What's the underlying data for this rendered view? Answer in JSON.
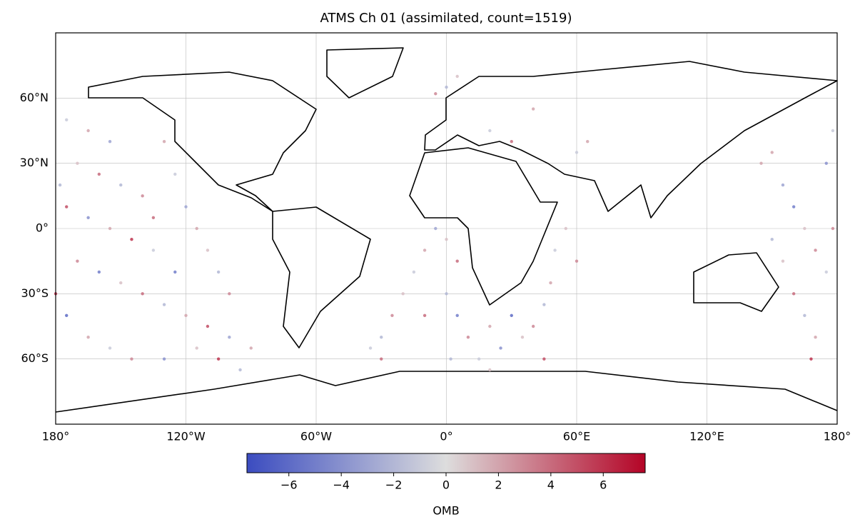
{
  "chart_data": {
    "type": "scatter",
    "title": "ATMS Ch 01 (assimilated, count=1519)",
    "xlim": [
      -180,
      180
    ],
    "ylim": [
      -90,
      90
    ],
    "xticks": [
      {
        "value": -180,
        "label": "180°"
      },
      {
        "value": -120,
        "label": "120°W"
      },
      {
        "value": -60,
        "label": "60°W"
      },
      {
        "value": 0,
        "label": "0°"
      },
      {
        "value": 60,
        "label": "60°E"
      },
      {
        "value": 120,
        "label": "120°E"
      },
      {
        "value": 180,
        "label": "180°"
      }
    ],
    "yticks": [
      {
        "value": -60,
        "label": "60°S"
      },
      {
        "value": -30,
        "label": "30°S"
      },
      {
        "value": 0,
        "label": "0°"
      },
      {
        "value": 30,
        "label": "30°N"
      },
      {
        "value": 60,
        "label": "60°N"
      }
    ],
    "grid": true,
    "x": [
      -175,
      -165,
      -155,
      -170,
      -160,
      -150,
      -140,
      -175,
      -165,
      -155,
      -145,
      -135,
      -170,
      -160,
      -150,
      -140,
      -130,
      -120,
      -110,
      -100,
      -175,
      -165,
      -155,
      -145,
      -130,
      -115,
      -105,
      -95,
      -130,
      -125,
      -120,
      -115,
      -110,
      -105,
      -100,
      -178,
      -135,
      -125,
      -90,
      -180,
      -30,
      -25,
      -20,
      -15,
      -10,
      -5,
      -30,
      -35,
      0,
      5,
      0,
      5,
      10,
      15,
      20,
      25,
      30,
      35,
      40,
      45,
      48,
      50,
      55,
      60,
      45,
      2,
      -10,
      20,
      5,
      0,
      -5,
      20,
      30,
      40,
      60,
      65,
      150,
      155,
      160,
      165,
      170,
      175,
      160,
      165,
      170,
      175,
      178,
      150,
      155,
      168,
      178,
      145
    ],
    "y": [
      50,
      45,
      40,
      30,
      25,
      20,
      15,
      10,
      5,
      0,
      -5,
      -10,
      -15,
      -20,
      -25,
      -30,
      -35,
      -40,
      -45,
      -50,
      -40,
      -50,
      -55,
      -60,
      -60,
      -55,
      -60,
      -65,
      40,
      25,
      10,
      0,
      -10,
      -20,
      -30,
      20,
      5,
      -20,
      -55,
      -30,
      -50,
      -40,
      -30,
      -20,
      -10,
      0,
      -60,
      -55,
      -5,
      -15,
      -30,
      -40,
      -50,
      -60,
      -45,
      -55,
      -40,
      -50,
      -45,
      -35,
      -25,
      -10,
      0,
      -15,
      -60,
      -60,
      -40,
      -65,
      70,
      65,
      62,
      45,
      40,
      55,
      35,
      40,
      35,
      20,
      10,
      0,
      -10,
      -20,
      -30,
      -40,
      -50,
      30,
      0,
      -5,
      -15,
      -60,
      45,
      30
    ],
    "values": [
      -1,
      2,
      -3,
      1,
      4,
      -2,
      3,
      5,
      -4,
      2,
      6,
      -1,
      3,
      -5,
      1,
      4,
      -2,
      2,
      5,
      -3,
      -6,
      2,
      -1,
      3,
      -4,
      1,
      6,
      -2,
      2,
      -1,
      -3,
      2,
      1,
      -2,
      3,
      -2,
      4,
      -5,
      2,
      6,
      -2,
      3,
      1,
      -1,
      2,
      -3,
      4,
      -1,
      1,
      4,
      -2,
      -5,
      3,
      -1,
      2,
      -4,
      -6,
      1,
      3,
      -2,
      2,
      -1,
      1,
      3,
      5,
      -2,
      4,
      1,
      1,
      -2,
      3,
      -1,
      4,
      2,
      -1,
      2,
      2,
      -3,
      -5,
      1,
      3,
      -1,
      4,
      -2,
      2,
      -4,
      3,
      -2,
      1,
      6,
      -1,
      2
    ],
    "cmap": [
      "#3b4cc0",
      "#dddddd",
      "#b40426"
    ],
    "clim": [
      -7.6,
      7.6
    ],
    "colorbar_label": "OMB",
    "colorbar_ticks": [
      {
        "value": -6,
        "label": "−6"
      },
      {
        "value": -4,
        "label": "−4"
      },
      {
        "value": -2,
        "label": "−2"
      },
      0,
      2,
      4,
      6
    ]
  }
}
